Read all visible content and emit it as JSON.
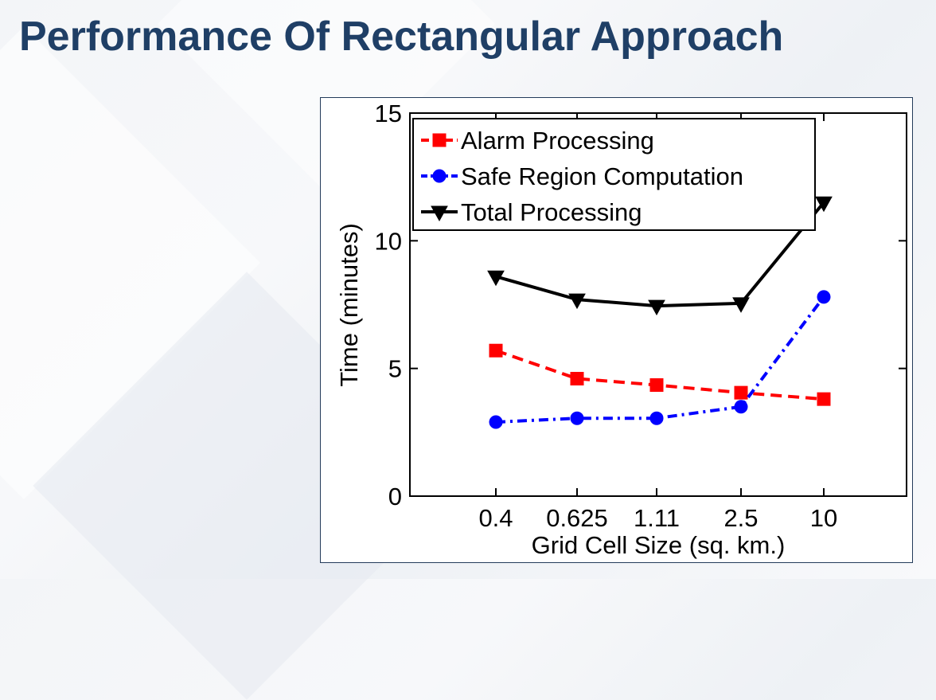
{
  "slide": {
    "title": "Performance Of Rectangular Approach"
  },
  "chart_data": {
    "type": "line",
    "title": "",
    "xlabel": "Grid Cell Size (sq. km.)",
    "ylabel": "Time (minutes)",
    "categories": [
      "0.4",
      "0.625",
      "1.11",
      "2.5",
      "10"
    ],
    "ylim": [
      0,
      15
    ],
    "yticks": [
      0,
      5,
      10,
      15
    ],
    "grid": false,
    "legend_position": "top-left",
    "series": [
      {
        "name": "Alarm Processing",
        "color": "#ff0000",
        "line_style": "dashed",
        "marker": "square",
        "values": [
          5.7,
          4.6,
          4.35,
          4.05,
          3.8
        ]
      },
      {
        "name": "Safe Region Computation",
        "color": "#0000ff",
        "line_style": "dash-dot",
        "marker": "circle",
        "values": [
          2.9,
          3.05,
          3.05,
          3.5,
          7.8
        ]
      },
      {
        "name": "Total Processing",
        "color": "#000000",
        "line_style": "solid",
        "marker": "triangle-down",
        "values": [
          8.6,
          7.7,
          7.45,
          7.55,
          11.5
        ]
      }
    ]
  }
}
